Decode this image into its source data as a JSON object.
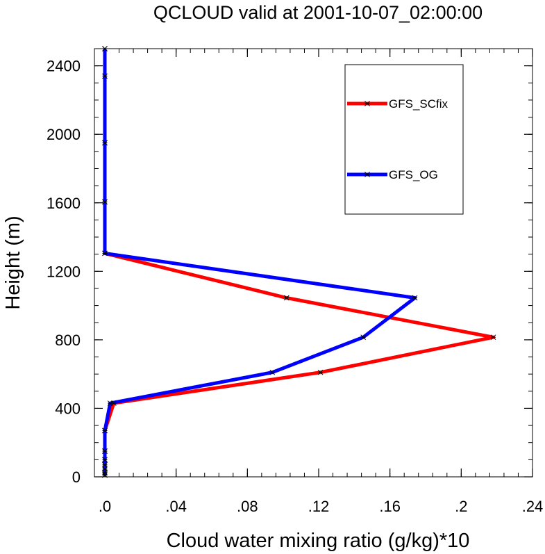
{
  "chart_data": {
    "type": "line",
    "title": "QCLOUD valid at 2001-10-07_02:00:00",
    "xlabel": "Cloud water mixing ratio (g/kg)*10",
    "ylabel": "Height (m)",
    "xlim": [
      0,
      0.24
    ],
    "ylim": [
      0,
      2500
    ],
    "x_ticks": [
      0,
      0.04,
      0.08,
      0.12,
      0.16,
      0.2,
      0.24
    ],
    "x_tick_labels": [
      ".0",
      ".04",
      ".08",
      ".12",
      ".16",
      ".2",
      ".24"
    ],
    "y_ticks": [
      0,
      400,
      800,
      1200,
      1600,
      2000,
      2400
    ],
    "y_tick_labels": [
      "0",
      "400",
      "800",
      "1200",
      "1600",
      "2000",
      "2400"
    ],
    "grid": false,
    "legend_position": "top-right",
    "series": [
      {
        "name": "GFS_SCfix",
        "color": "#ff0000",
        "marker": "asterisk",
        "points": [
          {
            "x": 0.0,
            "y": 10
          },
          {
            "x": 0.0,
            "y": 25
          },
          {
            "x": 0.0,
            "y": 45
          },
          {
            "x": 0.0,
            "y": 70
          },
          {
            "x": 0.0,
            "y": 100
          },
          {
            "x": 0.0,
            "y": 150
          },
          {
            "x": 0.0,
            "y": 270
          },
          {
            "x": 0.005,
            "y": 430
          },
          {
            "x": 0.121,
            "y": 610
          },
          {
            "x": 0.218,
            "y": 815
          },
          {
            "x": 0.102,
            "y": 1045
          },
          {
            "x": 0.0,
            "y": 1305
          },
          {
            "x": 0.0,
            "y": 1605
          },
          {
            "x": 0.0,
            "y": 1950
          },
          {
            "x": 0.0,
            "y": 2340
          },
          {
            "x": 0.0,
            "y": 2500
          }
        ]
      },
      {
        "name": "GFS_OG",
        "color": "#0000ff",
        "marker": "asterisk",
        "points": [
          {
            "x": 0.0,
            "y": 10
          },
          {
            "x": 0.0,
            "y": 25
          },
          {
            "x": 0.0,
            "y": 45
          },
          {
            "x": 0.0,
            "y": 70
          },
          {
            "x": 0.0,
            "y": 100
          },
          {
            "x": 0.0,
            "y": 150
          },
          {
            "x": 0.0,
            "y": 270
          },
          {
            "x": 0.003,
            "y": 430
          },
          {
            "x": 0.094,
            "y": 610
          },
          {
            "x": 0.145,
            "y": 815
          },
          {
            "x": 0.174,
            "y": 1045
          },
          {
            "x": 0.0,
            "y": 1305
          },
          {
            "x": 0.0,
            "y": 1605
          },
          {
            "x": 0.0,
            "y": 1950
          },
          {
            "x": 0.0,
            "y": 2340
          },
          {
            "x": 0.0,
            "y": 2500
          }
        ]
      }
    ]
  }
}
